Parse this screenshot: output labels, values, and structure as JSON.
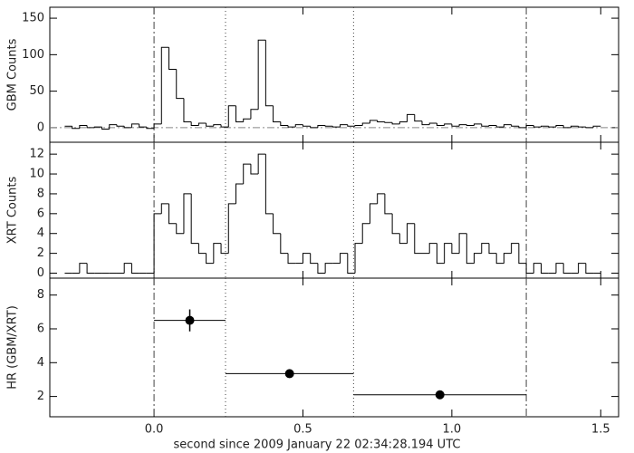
{
  "chart_data": [
    {
      "type": "histogram",
      "ylabel": "GBM Counts",
      "color": "#000000",
      "xlim": [
        -0.35,
        1.56
      ],
      "ylim": [
        -20,
        165
      ],
      "yticks": [
        0,
        50,
        100,
        150
      ],
      "zero_line": true,
      "reference_lines": [
        {
          "x": 0,
          "style": "dash-dot"
        },
        {
          "x": 0.24,
          "style": "dotted"
        },
        {
          "x": 0.67,
          "style": "dotted"
        },
        {
          "x": 1.25,
          "style": "dash-dot"
        }
      ],
      "bins": [
        -0.3,
        -0.275,
        -0.25,
        -0.225,
        -0.2,
        -0.175,
        -0.15,
        -0.125,
        -0.1,
        -0.075,
        -0.05,
        -0.025,
        0,
        0.025,
        0.05,
        0.075,
        0.1,
        0.125,
        0.15,
        0.175,
        0.2,
        0.225,
        0.25,
        0.275,
        0.3,
        0.325,
        0.35,
        0.375,
        0.4,
        0.425,
        0.45,
        0.475,
        0.5,
        0.525,
        0.55,
        0.575,
        0.6,
        0.625,
        0.65,
        0.675,
        0.7,
        0.725,
        0.75,
        0.775,
        0.8,
        0.825,
        0.85,
        0.875,
        0.9,
        0.925,
        0.95,
        0.975,
        1,
        1.025,
        1.05,
        1.075,
        1.1,
        1.125,
        1.15,
        1.175,
        1.2,
        1.225,
        1.25,
        1.275,
        1.3,
        1.325,
        1.35,
        1.375,
        1.4,
        1.425,
        1.45,
        1.475,
        1.5
      ],
      "values": [
        2,
        -1,
        3,
        0,
        1,
        -2,
        4,
        2,
        0,
        5,
        1,
        -1,
        5,
        110,
        80,
        40,
        8,
        3,
        6,
        2,
        4,
        1,
        30,
        8,
        12,
        25,
        120,
        30,
        8,
        3,
        1,
        4,
        2,
        0,
        3,
        2,
        1,
        4,
        2,
        3,
        6,
        10,
        8,
        7,
        5,
        8,
        18,
        9,
        4,
        6,
        3,
        5,
        2,
        4,
        3,
        5,
        2,
        3,
        1,
        4,
        2,
        0,
        3,
        1,
        2,
        1,
        3,
        0,
        2,
        1,
        0,
        2
      ]
    },
    {
      "type": "histogram",
      "ylabel": "XRT Counts",
      "color": "#000000",
      "xlim": [
        -0.35,
        1.56
      ],
      "ylim": [
        -0.5,
        13.2
      ],
      "yticks": [
        0,
        2,
        4,
        6,
        8,
        10,
        12
      ],
      "reference_lines": [
        {
          "x": 0,
          "style": "dash-dot"
        },
        {
          "x": 0.24,
          "style": "dotted"
        },
        {
          "x": 0.67,
          "style": "dotted"
        },
        {
          "x": 1.25,
          "style": "dash-dot"
        }
      ],
      "bins": [
        -0.3,
        -0.275,
        -0.25,
        -0.225,
        -0.2,
        -0.175,
        -0.15,
        -0.125,
        -0.1,
        -0.075,
        -0.05,
        -0.025,
        0,
        0.025,
        0.05,
        0.075,
        0.1,
        0.125,
        0.15,
        0.175,
        0.2,
        0.225,
        0.25,
        0.275,
        0.3,
        0.325,
        0.35,
        0.375,
        0.4,
        0.425,
        0.45,
        0.475,
        0.5,
        0.525,
        0.55,
        0.575,
        0.6,
        0.625,
        0.65,
        0.675,
        0.7,
        0.725,
        0.75,
        0.775,
        0.8,
        0.825,
        0.85,
        0.875,
        0.9,
        0.925,
        0.95,
        0.975,
        1,
        1.025,
        1.05,
        1.075,
        1.1,
        1.125,
        1.15,
        1.175,
        1.2,
        1.225,
        1.25,
        1.275,
        1.3,
        1.325,
        1.35,
        1.375,
        1.4,
        1.425,
        1.45,
        1.475,
        1.5
      ],
      "values": [
        0,
        0,
        1,
        0,
        0,
        0,
        0,
        0,
        1,
        0,
        0,
        0,
        6,
        7,
        5,
        4,
        8,
        3,
        2,
        1,
        3,
        2,
        7,
        9,
        11,
        10,
        12,
        6,
        4,
        2,
        1,
        1,
        2,
        1,
        0,
        1,
        1,
        2,
        0,
        3,
        5,
        7,
        8,
        6,
        4,
        3,
        5,
        2,
        2,
        3,
        1,
        3,
        2,
        4,
        1,
        2,
        3,
        2,
        1,
        2,
        3,
        1,
        0,
        1,
        0,
        0,
        1,
        0,
        0,
        1,
        0,
        0
      ]
    },
    {
      "type": "errorbar",
      "ylabel": "HR (GBM/XRT)",
      "xlabel": "second since 2009 January 22 02:34:28.194 UTC",
      "color": "#000000",
      "xlim": [
        -0.35,
        1.56
      ],
      "ylim": [
        0.8,
        9
      ],
      "xticks": [
        {
          "value": 0,
          "label": "0.0"
        },
        {
          "value": 0.5,
          "label": "0.5"
        },
        {
          "value": 1,
          "label": "1.0"
        },
        {
          "value": 1.5,
          "label": "1.5"
        }
      ],
      "yticks": [
        2,
        4,
        6,
        8
      ],
      "reference_lines": [
        {
          "x": 0,
          "style": "dash-dot"
        },
        {
          "x": 0.24,
          "style": "dotted"
        },
        {
          "x": 0.67,
          "style": "dotted"
        },
        {
          "x": 1.25,
          "style": "dash-dot"
        }
      ],
      "x": [
        0.12,
        0.455,
        0.96
      ],
      "xerr": [
        0.12,
        0.215,
        0.29
      ],
      "values": [
        6.5,
        3.35,
        2.1
      ],
      "yerr": [
        0.65,
        0.25,
        0.15
      ]
    }
  ]
}
